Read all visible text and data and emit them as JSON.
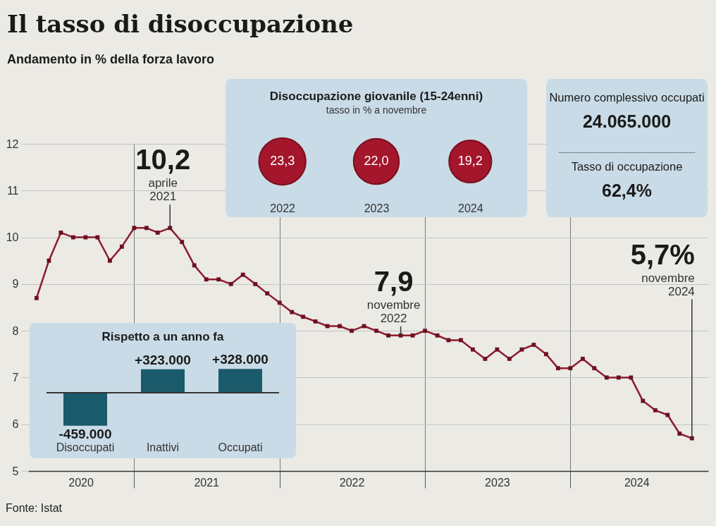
{
  "chart_data": [
    {
      "type": "line",
      "title": "Il tasso di disoccupazione",
      "subtitle": "Andamento in % della forza lavoro",
      "x": [
        "2020-05",
        "2020-06",
        "2020-07",
        "2020-08",
        "2020-09",
        "2020-10",
        "2020-11",
        "2020-12",
        "2021-01",
        "2021-02",
        "2021-03",
        "2021-04",
        "2021-05",
        "2021-06",
        "2021-07",
        "2021-08",
        "2021-09",
        "2021-10",
        "2021-11",
        "2021-12",
        "2022-01",
        "2022-02",
        "2022-03",
        "2022-04",
        "2022-05",
        "2022-06",
        "2022-07",
        "2022-08",
        "2022-09",
        "2022-10",
        "2022-11",
        "2022-12",
        "2023-01",
        "2023-02",
        "2023-03",
        "2023-04",
        "2023-05",
        "2023-06",
        "2023-07",
        "2023-08",
        "2023-09",
        "2023-10",
        "2023-11",
        "2023-12",
        "2024-01",
        "2024-02",
        "2024-03",
        "2024-04",
        "2024-05",
        "2024-06",
        "2024-07",
        "2024-08",
        "2024-09",
        "2024-10",
        "2024-11"
      ],
      "values": [
        8.7,
        9.5,
        10.1,
        10.0,
        10.0,
        10.0,
        9.5,
        9.8,
        10.2,
        10.2,
        10.1,
        10.2,
        9.9,
        9.4,
        9.1,
        9.1,
        9.0,
        9.2,
        9.0,
        8.8,
        8.6,
        8.4,
        8.3,
        8.2,
        8.1,
        8.1,
        8.0,
        8.1,
        8.0,
        7.9,
        7.9,
        7.9,
        8.0,
        7.9,
        7.8,
        7.8,
        7.6,
        7.4,
        7.6,
        7.4,
        7.6,
        7.7,
        7.5,
        7.2,
        7.2,
        7.4,
        7.2,
        7.0,
        7.0,
        7.0,
        6.5,
        6.3,
        6.2,
        5.8,
        5.7
      ],
      "color": "#8c1c2c",
      "marker": "square",
      "xlim": [
        "2020-04-10",
        "2024-12-12"
      ],
      "xticks": [
        {
          "value": "2020-08-20",
          "label": "2020"
        },
        {
          "value": "2021-01-01",
          "label": null
        },
        {
          "value": "2021-07-01",
          "label": "2021"
        },
        {
          "value": "2022-01-01",
          "label": null
        },
        {
          "value": "2022-07-01",
          "label": "2022"
        },
        {
          "value": "2023-01-01",
          "label": null
        },
        {
          "value": "2023-07-01",
          "label": "2023"
        },
        {
          "value": "2024-01-01",
          "label": null
        },
        {
          "value": "2024-06-15",
          "label": "2024"
        }
      ],
      "ylim": [
        5,
        12
      ],
      "yticks": [
        5,
        6,
        7,
        8,
        9,
        10,
        11,
        12
      ],
      "grid": true,
      "annotations": [
        {
          "text": "10,2",
          "x": "2021-04",
          "y": 10.2
        },
        {
          "text": "aprile 2021",
          "x": "2021-04",
          "y": 10.2
        },
        {
          "text": "7,9",
          "x": "2022-11",
          "y": 7.9
        },
        {
          "text": "novembre 2022",
          "x": "2022-11",
          "y": 7.9
        },
        {
          "text": "5,7%",
          "x": "2024-11",
          "y": 5.7
        },
        {
          "text": "novembre 2024",
          "x": "2024-11",
          "y": 5.7
        },
        "Fonte: Istat"
      ]
    },
    {
      "type": "bar",
      "title": "Rispetto a un anno fa",
      "categories": [
        "Disoccupati",
        "Inattivi",
        "Occupati"
      ],
      "values": [
        -459000,
        323000,
        328000
      ],
      "value_labels": [
        "-459.000",
        "+323.000",
        "+328.000"
      ],
      "color": "#1b5a6a"
    },
    {
      "type": "other",
      "title": "Disoccupazione giovanile (15-24enni)",
      "subtitle": "tasso in % a novembre",
      "categories": [
        "2022",
        "2023",
        "2024"
      ],
      "values": [
        23.3,
        22.0,
        19.2
      ],
      "value_labels": [
        "23,3",
        "22,0",
        "19,2"
      ],
      "color": "#a3162b"
    },
    {
      "type": "other",
      "categories": [
        "Numero complessivo occupati",
        "Tasso di occupazione"
      ],
      "value_labels": [
        "24.065.000",
        "62,4%"
      ]
    }
  ]
}
